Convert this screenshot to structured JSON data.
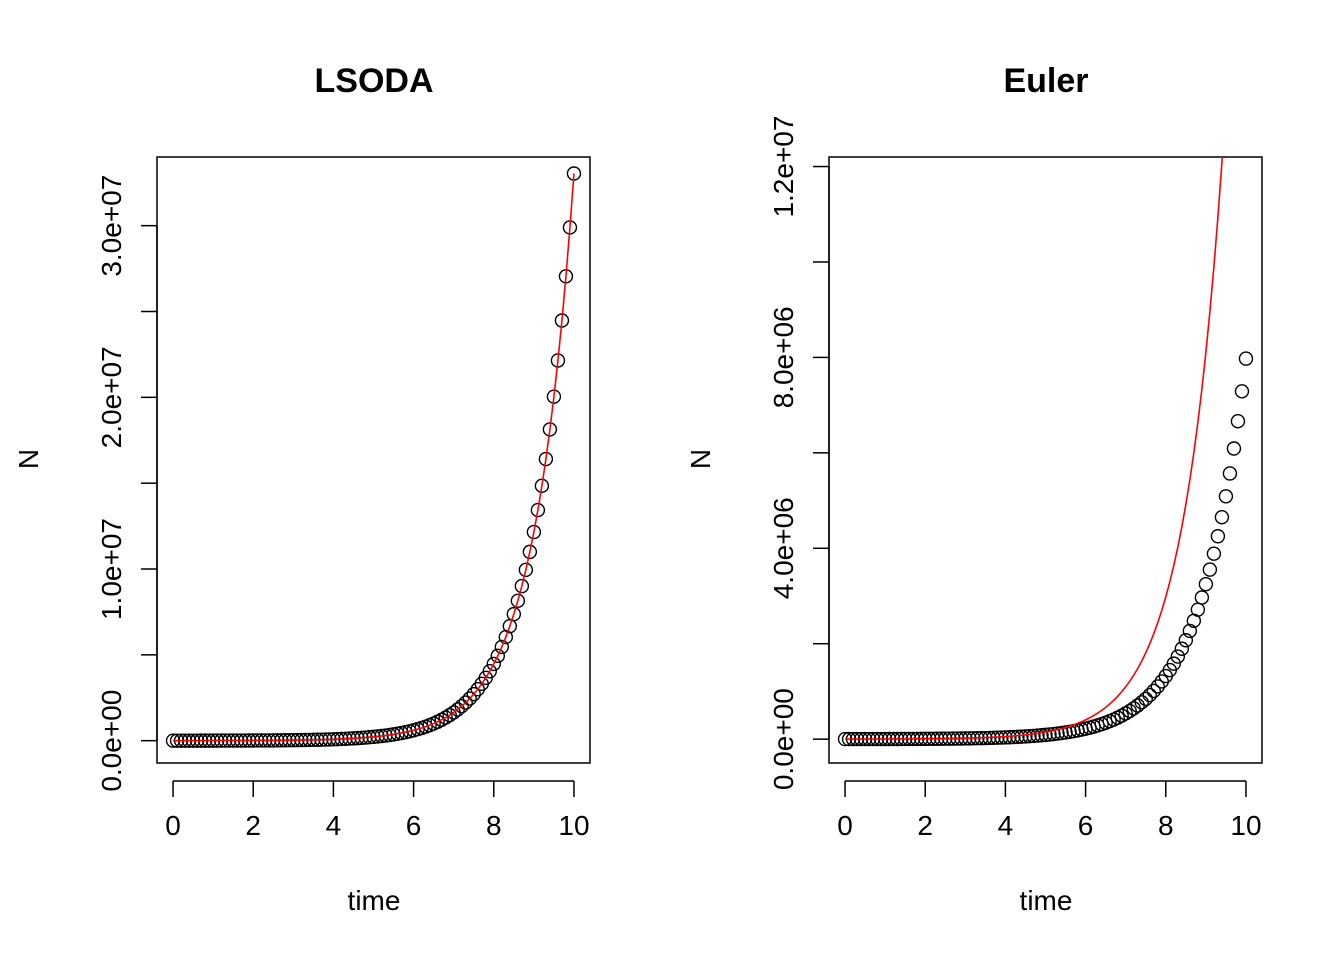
{
  "chart_data": [
    {
      "type": "scatter",
      "title": "LSODA",
      "xlabel": "time",
      "ylabel": "N",
      "xlim": [
        -0.4,
        10.4
      ],
      "ylim": [
        -1300000,
        34000000
      ],
      "xticks": [
        0,
        2,
        4,
        6,
        8,
        10
      ],
      "xtick_labels": [
        "0",
        "2",
        "4",
        "6",
        "8",
        "10"
      ],
      "yticks": [
        0,
        5000000,
        10000000,
        15000000,
        20000000,
        25000000,
        30000000
      ],
      "ytick_labels": [
        "0.0e+00",
        "",
        "1.0e+07",
        "",
        "2.0e+07",
        "",
        "3.0e+07"
      ],
      "grid": false,
      "series": [
        {
          "kind": "points",
          "color": "#000000",
          "marker": "open-circle",
          "x_start": 0,
          "x_end": 10,
          "x_step": 0.1,
          "growth": {
            "n0": 1500,
            "r": 1.0
          }
        },
        {
          "kind": "line",
          "color": "#ff0000",
          "x_start": 0,
          "x_end": 10,
          "x_step": 0.1,
          "growth": {
            "n0": 1500,
            "r": 1.0
          }
        }
      ]
    },
    {
      "type": "scatter",
      "title": "Euler",
      "xlabel": "time",
      "ylabel": "N",
      "xlim": [
        -0.4,
        10.4
      ],
      "ylim": [
        -500000,
        12200000
      ],
      "xticks": [
        0,
        2,
        4,
        6,
        8,
        10
      ],
      "xtick_labels": [
        "0",
        "2",
        "4",
        "6",
        "8",
        "10"
      ],
      "yticks": [
        0,
        2000000,
        4000000,
        6000000,
        8000000,
        10000000,
        12000000
      ],
      "ytick_labels": [
        "0.0e+00",
        "",
        "4.0e+06",
        "",
        "8.0e+06",
        "",
        "1.2e+07"
      ],
      "grid": false,
      "series": [
        {
          "kind": "points",
          "color": "#000000",
          "marker": "open-circle",
          "x_start": 0,
          "x_end": 10,
          "x_step": 0.1,
          "euler": {
            "n0": 1000,
            "factor": 1.094
          }
        },
        {
          "kind": "line",
          "color": "#ff0000",
          "x_start": 0,
          "x_end": 10,
          "x_step": 0.1,
          "growth": {
            "n0": 1000,
            "r": 1.0
          }
        }
      ]
    }
  ]
}
